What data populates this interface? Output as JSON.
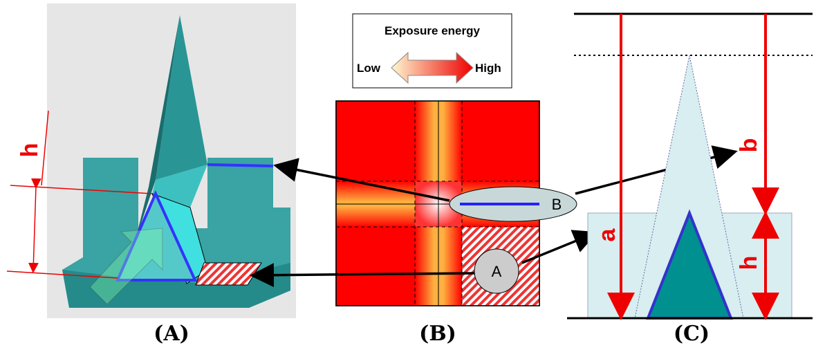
{
  "panel_a": {
    "h_label": "h",
    "caption": "(A)"
  },
  "panel_b": {
    "legend_title": "Exposure energy",
    "legend_low": "Low",
    "legend_high": "High",
    "region_b": "B",
    "region_a": "A",
    "caption": "(B)"
  },
  "panel_c": {
    "a_label": "a",
    "b_label": "b",
    "h_label": "h",
    "caption": "(C)"
  }
}
